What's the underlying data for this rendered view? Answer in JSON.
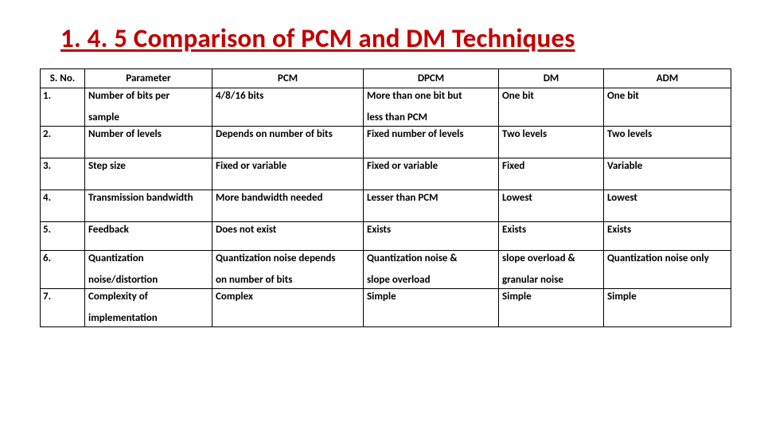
{
  "title_color": "#c00000",
  "title": "1. 4. 5  Comparison of PCM and DM Techniques",
  "columns": [
    "S. No.",
    "Parameter",
    "PCM",
    "DPCM",
    "DM",
    "ADM"
  ],
  "rows": [
    {
      "sno": "1.",
      "param_l1": "Number of bits per",
      "param_l2": "sample",
      "pcm_l1": "4/8/16 bits",
      "pcm_l2": "",
      "dpcm_l1": "More than one bit but",
      "dpcm_l2": "less than PCM",
      "dm_l1": "One bit",
      "dm_l2": "",
      "adm_l1": "One bit",
      "adm_l2": ""
    },
    {
      "sno": "2.",
      "param_l1": "Number of levels",
      "param_l2": "",
      "pcm_l1": "Depends on number of bits",
      "pcm_l2": "",
      "dpcm_l1": "Fixed number of levels",
      "dpcm_l2": "",
      "dm_l1": "Two levels",
      "dm_l2": "",
      "adm_l1": "Two levels",
      "adm_l2": ""
    },
    {
      "sno": "3.",
      "param_l1": "Step size",
      "param_l2": "",
      "pcm_l1": "Fixed or variable",
      "pcm_l2": "",
      "dpcm_l1": "Fixed or variable",
      "dpcm_l2": "",
      "dm_l1": "Fixed",
      "dm_l2": "",
      "adm_l1": "Variable",
      "adm_l2": ""
    },
    {
      "sno": "4.",
      "param_l1": "Transmission bandwidth",
      "param_l2": "",
      "pcm_l1": "More bandwidth needed",
      "pcm_l2": "",
      "dpcm_l1": "Lesser than PCM",
      "dpcm_l2": "",
      "dm_l1": "Lowest",
      "dm_l2": "",
      "adm_l1": "Lowest",
      "adm_l2": ""
    },
    {
      "sno": "5.",
      "param_l1": "Feedback",
      "param_l2": "",
      "pcm_l1": "Does not exist",
      "pcm_l2": "",
      "dpcm_l1": "Exists",
      "dpcm_l2": "",
      "dm_l1": "Exists",
      "dm_l2": "",
      "adm_l1": "Exists",
      "adm_l2": ""
    },
    {
      "sno": "6.",
      "param_l1": "Quantization",
      "param_l2": "noise/distortion",
      "pcm_l1": "Quantization noise depends",
      "pcm_l2": "on number of bits",
      "dpcm_l1": "Quantization noise &",
      "dpcm_l2": "slope overload",
      "dm_l1": "slope overload &",
      "dm_l2": "granular noise",
      "adm_l1": "Quantization noise only",
      "adm_l2": ""
    },
    {
      "sno": "7.",
      "param_l1": "Complexity of",
      "param_l2": "implementation",
      "pcm_l1": "Complex",
      "pcm_l2": "",
      "dpcm_l1": "Simple",
      "dpcm_l2": "",
      "dm_l1": "Simple",
      "dm_l2": "",
      "adm_l1": "Simple",
      "adm_l2": ""
    }
  ],
  "row_heights": [
    "tall",
    "med",
    "med",
    "med",
    "short",
    "tall",
    "tall"
  ]
}
